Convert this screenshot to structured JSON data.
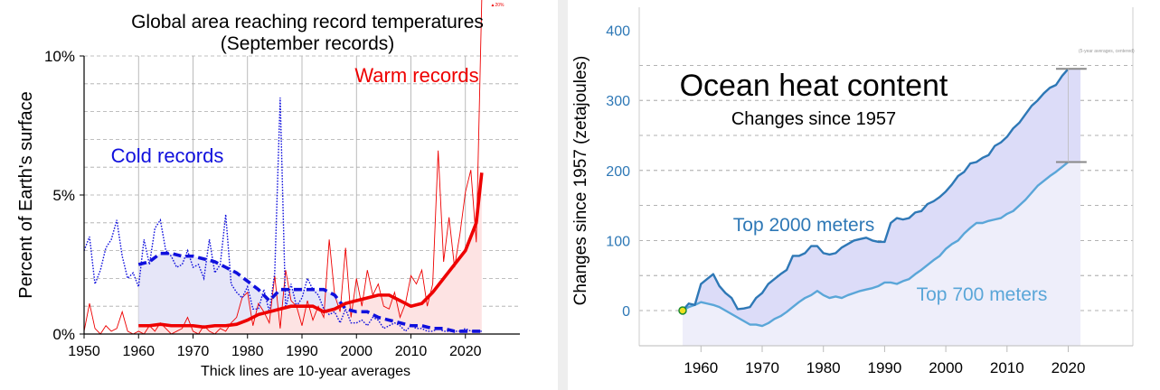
{
  "chart_data": [
    {
      "type": "line",
      "title": "Global area reaching record temperatures",
      "subtitle": "(September records)",
      "xlabel": "Thick lines are 10-year averages",
      "ylabel": "Percent of Earth's surface",
      "xlim": [
        1950,
        2030
      ],
      "ylim": [
        0,
        10
      ],
      "x_ticks": [
        "1950",
        "1960",
        "1970",
        "1980",
        "1990",
        "2000",
        "2010",
        "2020"
      ],
      "y_ticks": [
        "0%",
        "5%",
        "10%"
      ],
      "grid": true,
      "annotations": {
        "warm": "Warm records",
        "cold": "Cold records",
        "overflow": "▲20%"
      },
      "colors": {
        "warm": "#ee0000",
        "warm_fill": "#fde3e3",
        "cold": "#1010dd",
        "cold_fill": "#e6e6f8"
      },
      "series": [
        {
          "name": "Cold records",
          "style": "thin dotted",
          "x": [
            1950,
            1951,
            1952,
            1953,
            1954,
            1955,
            1956,
            1957,
            1958,
            1959,
            1960,
            1961,
            1962,
            1963,
            1964,
            1965,
            1966,
            1967,
            1968,
            1969,
            1970,
            1971,
            1972,
            1973,
            1974,
            1975,
            1976,
            1977,
            1978,
            1979,
            1980,
            1981,
            1982,
            1983,
            1984,
            1985,
            1986,
            1987,
            1988,
            1989,
            1990,
            1991,
            1992,
            1993,
            1994,
            1995,
            1996,
            1997,
            1998,
            1999,
            2000,
            2001,
            2002,
            2003,
            2004,
            2005,
            2006,
            2007,
            2008,
            2009,
            2010,
            2011,
            2012,
            2013,
            2014,
            2015,
            2016,
            2017,
            2018,
            2019,
            2020,
            2021,
            2022,
            2023
          ],
          "y": [
            3.0,
            3.5,
            1.8,
            2.3,
            3.1,
            3.4,
            4.1,
            2.8,
            2.0,
            2.2,
            1.7,
            3.4,
            2.5,
            3.8,
            4.1,
            3.0,
            2.8,
            2.4,
            2.5,
            3.0,
            2.4,
            2.5,
            2.0,
            3.4,
            2.2,
            2.5,
            4.3,
            1.8,
            1.5,
            1.3,
            1.7,
            0.9,
            0.9,
            1.6,
            0.8,
            2.2,
            8.5,
            0.9,
            1.8,
            1.0,
            1.3,
            2.0,
            1.6,
            1.4,
            0.9,
            0.7,
            0.8,
            0.4,
            0.9,
            0.4,
            0.4,
            0.5,
            0.3,
            0.6,
            0.5,
            0.2,
            0.3,
            0.4,
            0.3,
            0.1,
            0.3,
            0.2,
            0.2,
            0.1,
            0.1,
            0.2,
            0.1,
            0.1,
            0.1,
            0.1,
            0.2,
            0.1,
            0.1,
            0.1
          ]
        },
        {
          "name": "Cold records",
          "style": "thick dashed 10-year average",
          "x": [
            1960,
            1962,
            1964,
            1966,
            1968,
            1970,
            1972,
            1974,
            1976,
            1978,
            1980,
            1982,
            1984,
            1986,
            1988,
            1990,
            1992,
            1994,
            1996,
            1998,
            2000,
            2002,
            2004,
            2006,
            2008,
            2010,
            2012,
            2014,
            2016,
            2018,
            2020,
            2022,
            2023
          ],
          "y": [
            2.5,
            2.6,
            2.9,
            2.9,
            2.8,
            2.8,
            2.7,
            2.6,
            2.4,
            2.2,
            1.9,
            1.6,
            1.2,
            1.6,
            1.6,
            1.6,
            1.6,
            1.6,
            1.4,
            0.9,
            0.8,
            0.8,
            0.6,
            0.5,
            0.4,
            0.3,
            0.3,
            0.2,
            0.2,
            0.1,
            0.1,
            0.1,
            0.1
          ]
        },
        {
          "name": "Warm records",
          "style": "thin solid",
          "x": [
            1950,
            1951,
            1952,
            1953,
            1954,
            1955,
            1956,
            1957,
            1958,
            1959,
            1960,
            1961,
            1962,
            1963,
            1964,
            1965,
            1966,
            1967,
            1968,
            1969,
            1970,
            1971,
            1972,
            1973,
            1974,
            1975,
            1976,
            1977,
            1978,
            1979,
            1980,
            1981,
            1982,
            1983,
            1984,
            1985,
            1986,
            1987,
            1988,
            1989,
            1990,
            1991,
            1992,
            1993,
            1994,
            1995,
            1996,
            1997,
            1998,
            1999,
            2000,
            2001,
            2002,
            2003,
            2004,
            2005,
            2006,
            2007,
            2008,
            2009,
            2010,
            2011,
            2012,
            2013,
            2014,
            2015,
            2016,
            2017,
            2018,
            2019,
            2020,
            2021,
            2022,
            2023
          ],
          "y": [
            0.1,
            1.1,
            0.2,
            0.0,
            0.3,
            0.1,
            0.2,
            0.8,
            0.1,
            0.0,
            0.1,
            0.0,
            0.3,
            0.1,
            0.4,
            0.2,
            0.0,
            0.1,
            0.2,
            0.6,
            0.1,
            0.0,
            0.3,
            0.1,
            0.0,
            0.2,
            0.1,
            0.4,
            0.6,
            1.3,
            1.5,
            0.3,
            1.1,
            0.8,
            0.4,
            2.1,
            0.2,
            2.3,
            1.2,
            1.0,
            0.3,
            1.2,
            0.5,
            1.0,
            0.6,
            3.4,
            1.4,
            0.8,
            3.1,
            0.6,
            2.0,
            1.0,
            2.3,
            1.4,
            1.8,
            1.0,
            0.9,
            1.5,
            0.6,
            1.1,
            2.1,
            1.8,
            2.3,
            1.0,
            1.8,
            6.6,
            2.6,
            4.2,
            2.4,
            3.6,
            5.1,
            5.9,
            3.3,
            20.0
          ]
        },
        {
          "name": "Warm records",
          "style": "thick solid 10-year average",
          "x": [
            1960,
            1962,
            1964,
            1966,
            1968,
            1970,
            1972,
            1974,
            1976,
            1978,
            1980,
            1982,
            1984,
            1986,
            1988,
            1990,
            1992,
            1994,
            1996,
            1998,
            2000,
            2002,
            2004,
            2006,
            2008,
            2010,
            2012,
            2014,
            2016,
            2018,
            2020,
            2022,
            2023
          ],
          "y": [
            0.3,
            0.3,
            0.35,
            0.3,
            0.3,
            0.3,
            0.25,
            0.3,
            0.3,
            0.35,
            0.5,
            0.7,
            0.8,
            0.9,
            1.0,
            1.0,
            1.0,
            0.8,
            0.9,
            1.1,
            1.2,
            1.3,
            1.4,
            1.4,
            1.2,
            1.0,
            1.1,
            1.5,
            2.0,
            2.5,
            3.0,
            4.0,
            5.8
          ]
        }
      ]
    },
    {
      "type": "line",
      "title": "Ocean heat content",
      "subtitle": "Changes since 1957",
      "xlabel": "",
      "ylabel": "Changes since 1957 (zetajoules)",
      "xlim": [
        1950,
        2030
      ],
      "ylim": [
        -50,
        400
      ],
      "x_ticks": [
        "1960",
        "1970",
        "1980",
        "1990",
        "2000",
        "2010",
        "2020"
      ],
      "y_ticks": [
        "0",
        "100",
        "200",
        "300",
        "400"
      ],
      "grid": true,
      "annotations": {
        "top2000": "Top 2000 meters",
        "top700": "Top 700 meters",
        "note": "(5-year averages, centered)"
      },
      "colors": {
        "top2000": "#2e78b6",
        "top700": "#5aa6d8",
        "fill_upper": "#dcdcf8",
        "fill_lower": "#eeeefa",
        "axis_text": "#2e78b6",
        "marker": "#f0e020"
      },
      "series": [
        {
          "name": "Top 2000 meters",
          "x": [
            1957,
            1958,
            1959,
            1960,
            1961,
            1962,
            1963,
            1964,
            1965,
            1966,
            1967,
            1968,
            1969,
            1970,
            1971,
            1972,
            1973,
            1974,
            1975,
            1976,
            1977,
            1978,
            1979,
            1980,
            1981,
            1982,
            1983,
            1984,
            1985,
            1986,
            1987,
            1988,
            1989,
            1990,
            1991,
            1992,
            1993,
            1994,
            1995,
            1996,
            1997,
            1998,
            1999,
            2000,
            2001,
            2002,
            2003,
            2004,
            2005,
            2006,
            2007,
            2008,
            2009,
            2010,
            2011,
            2012,
            2013,
            2014,
            2015,
            2016,
            2017,
            2018,
            2019,
            2020
          ],
          "y": [
            0,
            10,
            8,
            38,
            45,
            52,
            35,
            25,
            18,
            2,
            3,
            5,
            18,
            25,
            38,
            45,
            52,
            58,
            78,
            78,
            82,
            92,
            92,
            82,
            80,
            82,
            90,
            95,
            100,
            102,
            104,
            100,
            98,
            98,
            125,
            132,
            130,
            132,
            140,
            142,
            152,
            156,
            162,
            170,
            180,
            192,
            198,
            210,
            212,
            218,
            222,
            235,
            240,
            248,
            260,
            268,
            280,
            292,
            300,
            310,
            318,
            322,
            335,
            345
          ]
        },
        {
          "name": "Top 700 meters",
          "x": [
            1957,
            1958,
            1959,
            1960,
            1961,
            1962,
            1963,
            1964,
            1965,
            1966,
            1967,
            1968,
            1969,
            1970,
            1971,
            1972,
            1973,
            1974,
            1975,
            1976,
            1977,
            1978,
            1979,
            1980,
            1981,
            1982,
            1983,
            1984,
            1985,
            1986,
            1987,
            1988,
            1989,
            1990,
            1991,
            1992,
            1993,
            1994,
            1995,
            1996,
            1997,
            1998,
            1999,
            2000,
            2001,
            2002,
            2003,
            2004,
            2005,
            2006,
            2007,
            2008,
            2009,
            2010,
            2011,
            2012,
            2013,
            2014,
            2015,
            2016,
            2017,
            2018,
            2019,
            2020
          ],
          "y": [
            0,
            5,
            8,
            12,
            10,
            8,
            5,
            0,
            -5,
            -10,
            -15,
            -20,
            -20,
            -22,
            -18,
            -12,
            -8,
            -2,
            5,
            12,
            18,
            22,
            28,
            22,
            18,
            20,
            18,
            22,
            25,
            28,
            30,
            32,
            35,
            40,
            40,
            38,
            42,
            45,
            52,
            58,
            65,
            72,
            78,
            88,
            95,
            100,
            110,
            118,
            125,
            125,
            128,
            130,
            132,
            138,
            142,
            150,
            158,
            168,
            178,
            185,
            192,
            198,
            205,
            212
          ]
        }
      ]
    }
  ]
}
